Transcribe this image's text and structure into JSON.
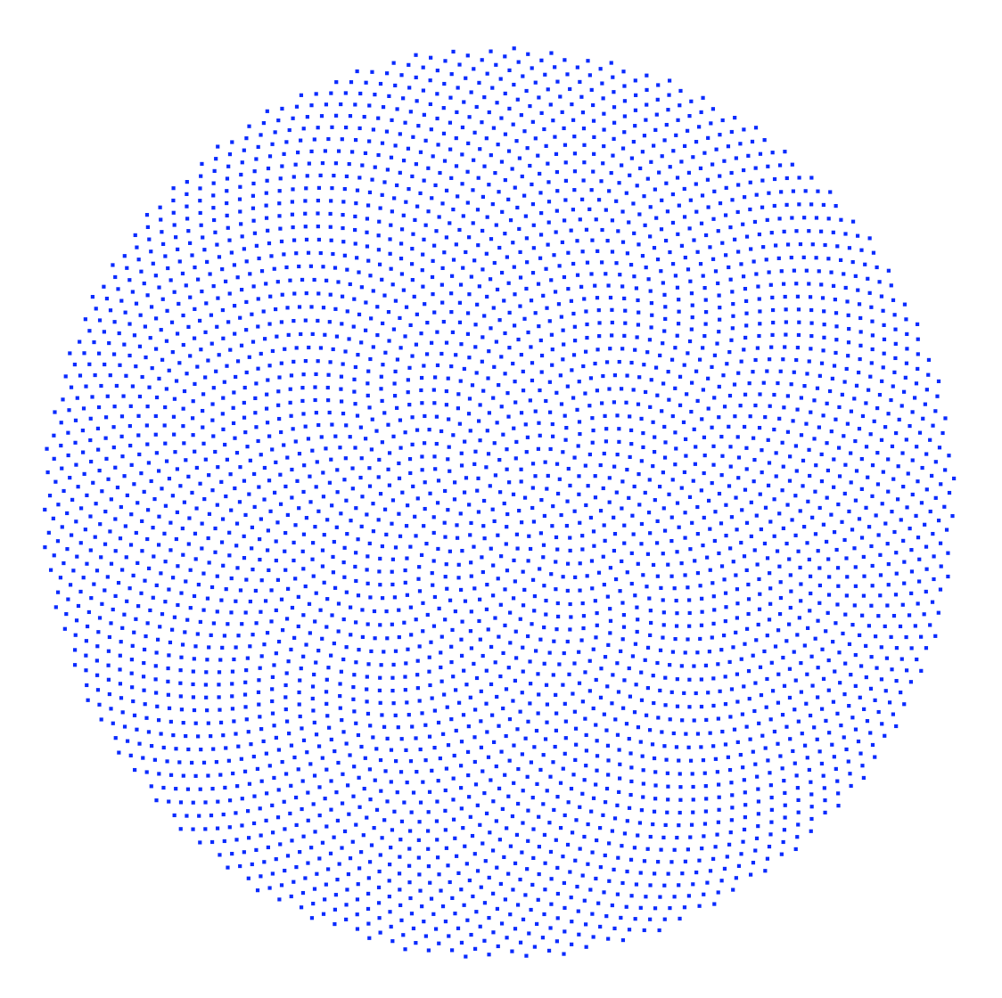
{
  "pattern": {
    "kind": "phyllotaxis spiral",
    "point_count": 4000,
    "divergence_angle_deg": 137.508,
    "marker_shape": "square",
    "marker_color": "#0a2bff",
    "background_color": "#ffffff"
  }
}
